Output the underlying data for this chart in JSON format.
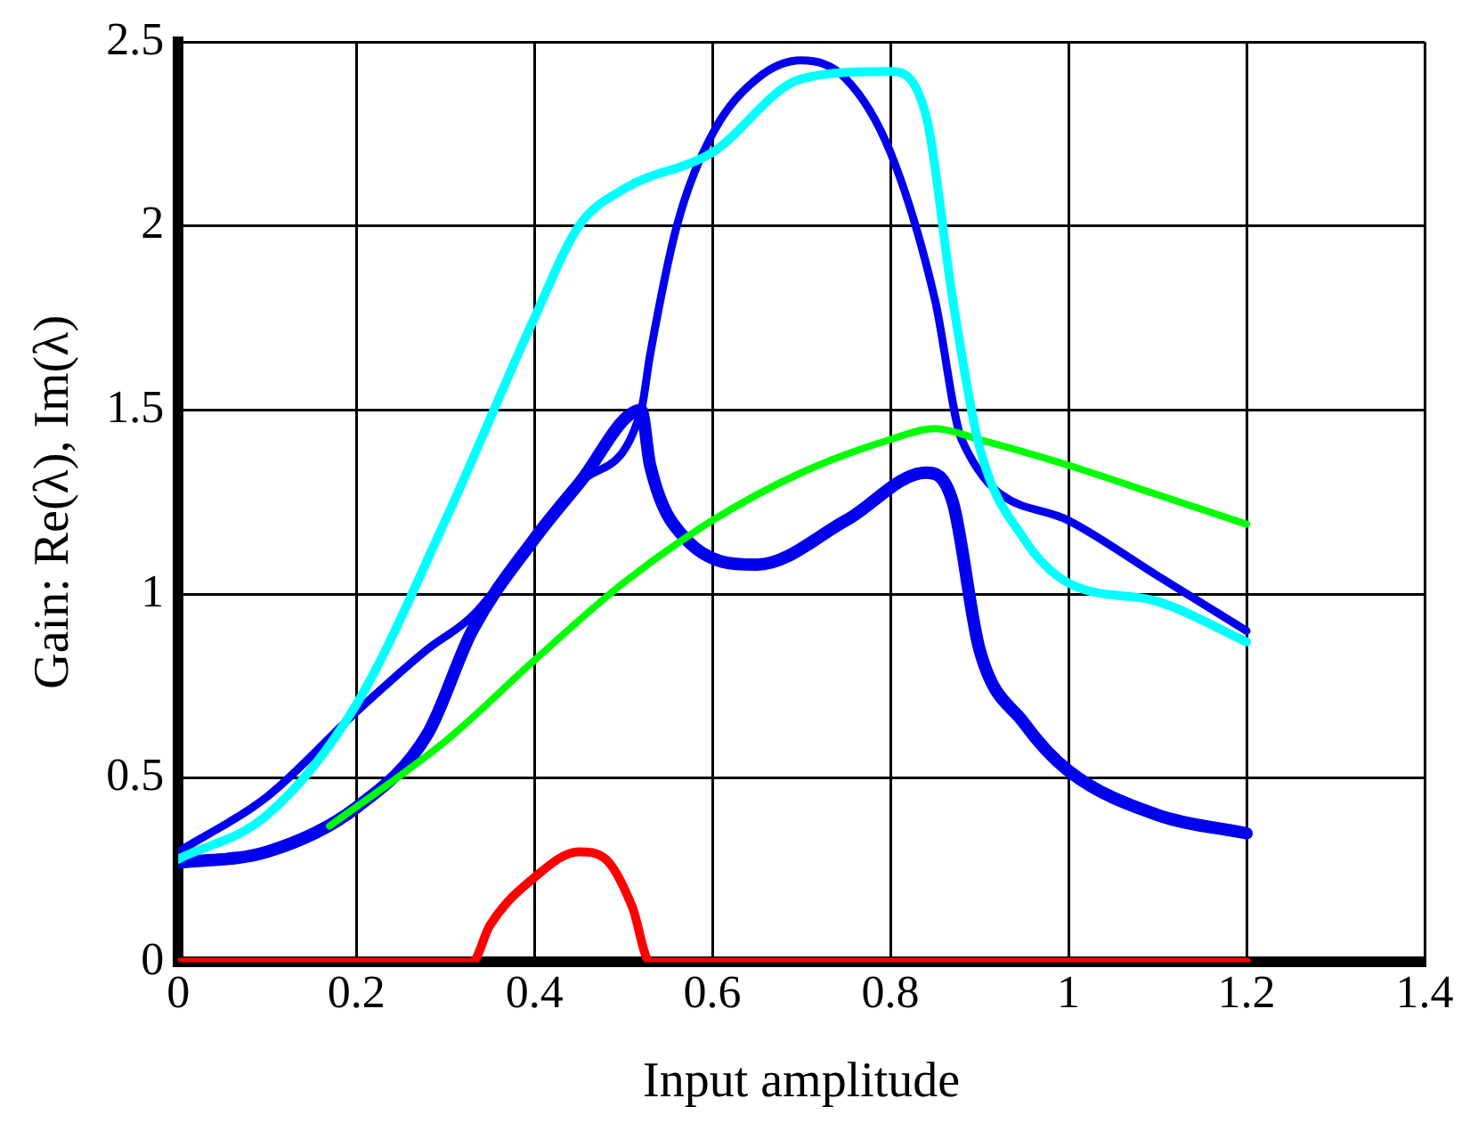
{
  "chart_data": {
    "type": "line",
    "xlabel": "Input amplitude",
    "ylabel": "Gain: Re(λ), Im(λ)",
    "xlim": [
      0,
      1.4
    ],
    "xticks": [
      0,
      0.2,
      0.4,
      0.6,
      0.8,
      1,
      1.2,
      1.4
    ],
    "ylim": [
      0,
      2.5
    ],
    "yticks": [
      0,
      0.5,
      1,
      1.5,
      2,
      2.5
    ],
    "grid": true,
    "legend": false,
    "marker": "none",
    "line_style": "solid",
    "series": [
      {
        "color": "#00ffff",
        "x": [
          0,
          0.1,
          0.2,
          0.3,
          0.4,
          0.45,
          0.5,
          0.6,
          0.7,
          0.8,
          0.84,
          0.87,
          0.9,
          0.95,
          1.0,
          1.1,
          1.2
        ],
        "values": [
          0.28,
          0.4,
          0.7,
          1.2,
          1.75,
          2.0,
          2.1,
          2.2,
          2.4,
          2.42,
          2.3,
          1.8,
          1.4,
          1.15,
          1.03,
          0.98,
          0.87
        ]
      },
      {
        "color": "#00ff00",
        "x": [
          0.17,
          0.3,
          0.4,
          0.5,
          0.6,
          0.7,
          0.8,
          0.85,
          0.9,
          1.0,
          1.1,
          1.2
        ],
        "values": [
          0.37,
          0.6,
          0.82,
          1.03,
          1.2,
          1.33,
          1.42,
          1.45,
          1.42,
          1.35,
          1.27,
          1.19
        ]
      },
      {
        "color": "#0000ee",
        "x": [
          0,
          0.1,
          0.2,
          0.28,
          0.33,
          0.4,
          0.45,
          0.52,
          0.53,
          0.56,
          0.6,
          0.65,
          0.7,
          0.75,
          0.8,
          0.85,
          0.88,
          1.0,
          1.1,
          1.2
        ],
        "values": [
          0.3,
          0.45,
          0.68,
          0.85,
          0.94,
          1.15,
          1.3,
          1.5,
          1.65,
          2.0,
          2.25,
          2.4,
          2.45,
          2.4,
          2.2,
          1.8,
          1.42,
          1.2,
          1.05,
          0.9
        ]
      },
      {
        "color": "#0000ee",
        "x": [
          0,
          0.1,
          0.2,
          0.28,
          0.33,
          0.4,
          0.45,
          0.52,
          0.53,
          0.57,
          0.65,
          0.75,
          0.84,
          0.87,
          0.9,
          0.95,
          1.0,
          1.1,
          1.2
        ],
        "values": [
          0.27,
          0.3,
          0.42,
          0.62,
          0.9,
          1.15,
          1.3,
          1.5,
          1.35,
          1.15,
          1.08,
          1.2,
          1.33,
          1.25,
          0.85,
          0.65,
          0.52,
          0.4,
          0.35
        ]
      },
      {
        "color": "#ff0000",
        "x": [
          0,
          0.33,
          0.35,
          0.4,
          0.45,
          0.48,
          0.51,
          0.53,
          1.2
        ],
        "values": [
          0,
          0,
          0.1,
          0.23,
          0.3,
          0.28,
          0.15,
          0,
          0
        ]
      }
    ]
  }
}
